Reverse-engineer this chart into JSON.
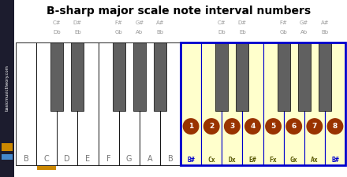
{
  "title": "B-sharp major scale note interval numbers",
  "white_keys_left": [
    "B",
    "C",
    "D",
    "E",
    "F",
    "G",
    "A",
    "B"
  ],
  "white_keys_right": [
    "B#",
    "Cx",
    "Dx",
    "E#",
    "Fx",
    "Gx",
    "Ax",
    "B#"
  ],
  "interval_numbers": [
    1,
    2,
    3,
    4,
    5,
    6,
    7,
    8
  ],
  "bk_labels": [
    "C#\nDb",
    "D#\nEb",
    "F#\nGb",
    "G#\nAb",
    "A#\nBb"
  ],
  "bk_gaps": [
    1,
    2,
    4,
    5,
    6
  ],
  "bg_color": "#ffffff",
  "sidebar_color": "#1c1c2e",
  "sidebar_text": "basicmusictheory.com",
  "sidebar_orange": "#cc8800",
  "sidebar_blue": "#4488cc",
  "white_key_color": "#ffffff",
  "black_key_color": "#606060",
  "highlighted_white_fill": "#ffffcc",
  "highlighted_border_color": "#0000cc",
  "interval_circle_color": "#993300",
  "interval_text_color": "#ffffff",
  "note_label_blue": "#0000cc",
  "note_label_dark": "#555500",
  "c_orange": "#cc8800",
  "bk_label_color": "#999999"
}
